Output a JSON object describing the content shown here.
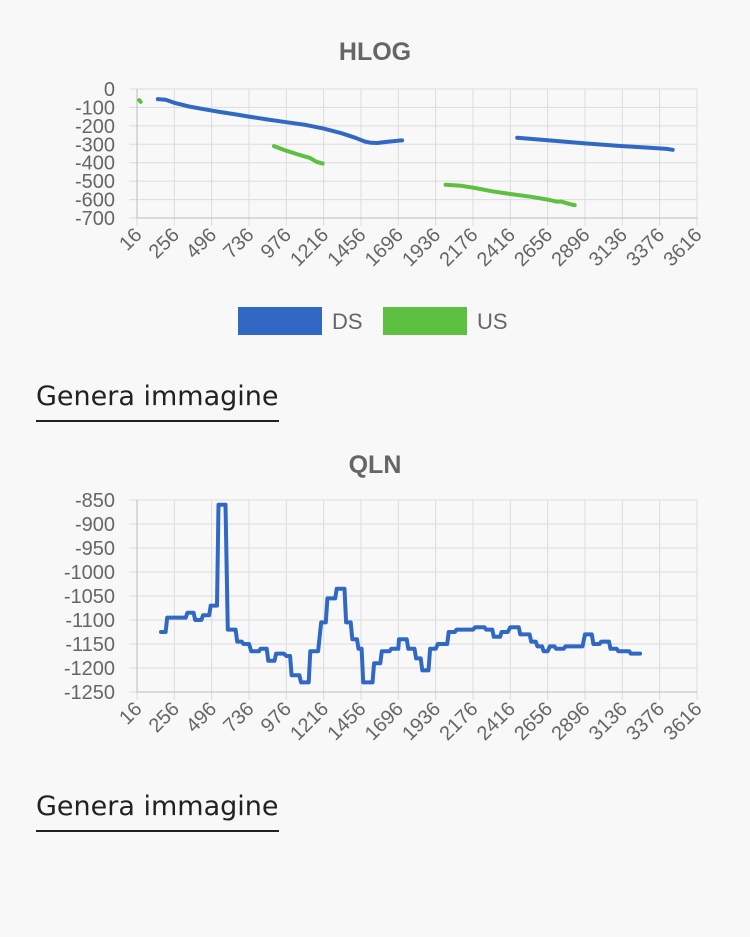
{
  "charts": {
    "hlog": {
      "title": "HLOG"
    },
    "qln": {
      "title": "QLN"
    }
  },
  "actions": {
    "generate_image_1": "Genera immagine",
    "generate_image_2": "Genera immagine"
  },
  "colors": {
    "ds": "#3068c4",
    "us": "#5dc040"
  },
  "chart_data": [
    {
      "type": "line",
      "title": "HLOG",
      "xlabel": "",
      "ylabel": "",
      "x_ticks": [
        16,
        256,
        496,
        736,
        976,
        1216,
        1456,
        1696,
        1936,
        2176,
        2416,
        2656,
        2896,
        3136,
        3376,
        3616
      ],
      "y_ticks": [
        0,
        -100,
        -200,
        -300,
        -400,
        -500,
        -600,
        -700
      ],
      "xlim": [
        16,
        3616
      ],
      "ylim": [
        -700,
        0
      ],
      "grid": true,
      "legend": "bottom",
      "series": [
        {
          "name": "DS",
          "color": "#3068c4",
          "segments": [
            [
              [
                150,
                -55
              ],
              [
                200,
                -58
              ],
              [
                256,
                -75
              ],
              [
                350,
                -95
              ],
              [
                450,
                -110
              ],
              [
                550,
                -125
              ],
              [
                650,
                -138
              ],
              [
                736,
                -150
              ],
              [
                850,
                -165
              ],
              [
                976,
                -180
              ],
              [
                1100,
                -195
              ],
              [
                1216,
                -215
              ],
              [
                1330,
                -240
              ],
              [
                1420,
                -265
              ],
              [
                1480,
                -285
              ],
              [
                1520,
                -292
              ],
              [
                1560,
                -293
              ],
              [
                1620,
                -287
              ],
              [
                1700,
                -280
              ],
              [
                1720,
                -279
              ]
            ],
            [
              [
                2460,
                -265
              ],
              [
                2656,
                -278
              ],
              [
                2896,
                -295
              ],
              [
                3136,
                -310
              ],
              [
                3300,
                -318
              ],
              [
                3420,
                -325
              ],
              [
                3460,
                -330
              ]
            ]
          ]
        },
        {
          "name": "US",
          "color": "#5dc040",
          "segments": [
            [
              [
                30,
                -60
              ],
              [
                40,
                -70
              ]
            ],
            [
              [
                896,
                -310
              ],
              [
                976,
                -335
              ],
              [
                1050,
                -355
              ],
              [
                1130,
                -375
              ],
              [
                1170,
                -395
              ],
              [
                1210,
                -405
              ]
            ],
            [
              [
                2000,
                -520
              ],
              [
                2100,
                -525
              ],
              [
                2176,
                -535
              ],
              [
                2300,
                -555
              ],
              [
                2416,
                -570
              ],
              [
                2550,
                -585
              ],
              [
                2656,
                -600
              ],
              [
                2720,
                -612
              ],
              [
                2740,
                -610
              ],
              [
                2800,
                -625
              ],
              [
                2830,
                -630
              ]
            ]
          ]
        }
      ]
    },
    {
      "type": "line",
      "title": "QLN",
      "xlabel": "",
      "ylabel": "",
      "x_ticks": [
        16,
        256,
        496,
        736,
        976,
        1216,
        1456,
        1696,
        1936,
        2176,
        2416,
        2656,
        2896,
        3136,
        3376,
        3616
      ],
      "y_ticks": [
        -850,
        -900,
        -950,
        -1000,
        -1050,
        -1100,
        -1150,
        -1200,
        -1250
      ],
      "xlim": [
        16,
        3616
      ],
      "ylim": [
        -1250,
        -850
      ],
      "grid": true,
      "legend": "none",
      "series": [
        {
          "color": "#3068c4",
          "points": [
            [
              170,
              -1125
            ],
            [
              200,
              -1125
            ],
            [
              210,
              -1095
            ],
            [
              256,
              -1095
            ],
            [
              330,
              -1095
            ],
            [
              340,
              -1085
            ],
            [
              380,
              -1085
            ],
            [
              390,
              -1100
            ],
            [
              430,
              -1100
            ],
            [
              440,
              -1090
            ],
            [
              480,
              -1090
            ],
            [
              490,
              -1070
            ],
            [
              530,
              -1070
            ],
            [
              540,
              -860
            ],
            [
              585,
              -860
            ],
            [
              600,
              -1120
            ],
            [
              650,
              -1120
            ],
            [
              660,
              -1145
            ],
            [
              690,
              -1145
            ],
            [
              700,
              -1150
            ],
            [
              736,
              -1150
            ],
            [
              750,
              -1165
            ],
            [
              800,
              -1165
            ],
            [
              810,
              -1160
            ],
            [
              850,
              -1160
            ],
            [
              860,
              -1185
            ],
            [
              900,
              -1185
            ],
            [
              910,
              -1170
            ],
            [
              960,
              -1170
            ],
            [
              976,
              -1175
            ],
            [
              1000,
              -1175
            ],
            [
              1010,
              -1215
            ],
            [
              1060,
              -1215
            ],
            [
              1070,
              -1230
            ],
            [
              1120,
              -1230
            ],
            [
              1130,
              -1165
            ],
            [
              1180,
              -1165
            ],
            [
              1200,
              -1105
            ],
            [
              1230,
              -1105
            ],
            [
              1240,
              -1055
            ],
            [
              1290,
              -1055
            ],
            [
              1300,
              -1035
            ],
            [
              1350,
              -1035
            ],
            [
              1360,
              -1105
            ],
            [
              1390,
              -1105
            ],
            [
              1400,
              -1140
            ],
            [
              1430,
              -1140
            ],
            [
              1440,
              -1160
            ],
            [
              1460,
              -1160
            ],
            [
              1470,
              -1230
            ],
            [
              1530,
              -1230
            ],
            [
              1540,
              -1190
            ],
            [
              1580,
              -1190
            ],
            [
              1590,
              -1165
            ],
            [
              1640,
              -1165
            ],
            [
              1650,
              -1160
            ],
            [
              1696,
              -1160
            ],
            [
              1700,
              -1140
            ],
            [
              1750,
              -1140
            ],
            [
              1760,
              -1160
            ],
            [
              1800,
              -1160
            ],
            [
              1810,
              -1180
            ],
            [
              1840,
              -1180
            ],
            [
              1850,
              -1205
            ],
            [
              1890,
              -1205
            ],
            [
              1900,
              -1160
            ],
            [
              1936,
              -1160
            ],
            [
              1950,
              -1150
            ],
            [
              2010,
              -1150
            ],
            [
              2020,
              -1125
            ],
            [
              2060,
              -1125
            ],
            [
              2070,
              -1120
            ],
            [
              2176,
              -1120
            ],
            [
              2190,
              -1115
            ],
            [
              2250,
              -1115
            ],
            [
              2260,
              -1120
            ],
            [
              2300,
              -1120
            ],
            [
              2310,
              -1135
            ],
            [
              2350,
              -1135
            ],
            [
              2360,
              -1125
            ],
            [
              2400,
              -1125
            ],
            [
              2416,
              -1115
            ],
            [
              2470,
              -1115
            ],
            [
              2480,
              -1130
            ],
            [
              2540,
              -1130
            ],
            [
              2550,
              -1145
            ],
            [
              2580,
              -1145
            ],
            [
              2590,
              -1155
            ],
            [
              2620,
              -1155
            ],
            [
              2630,
              -1165
            ],
            [
              2656,
              -1165
            ],
            [
              2670,
              -1155
            ],
            [
              2700,
              -1155
            ],
            [
              2710,
              -1160
            ],
            [
              2760,
              -1160
            ],
            [
              2770,
              -1155
            ],
            [
              2880,
              -1155
            ],
            [
              2896,
              -1130
            ],
            [
              2940,
              -1130
            ],
            [
              2950,
              -1150
            ],
            [
              2990,
              -1150
            ],
            [
              3000,
              -1145
            ],
            [
              3050,
              -1145
            ],
            [
              3060,
              -1160
            ],
            [
              3100,
              -1160
            ],
            [
              3110,
              -1165
            ],
            [
              3180,
              -1165
            ],
            [
              3190,
              -1170
            ],
            [
              3250,
              -1170
            ]
          ]
        }
      ]
    }
  ]
}
